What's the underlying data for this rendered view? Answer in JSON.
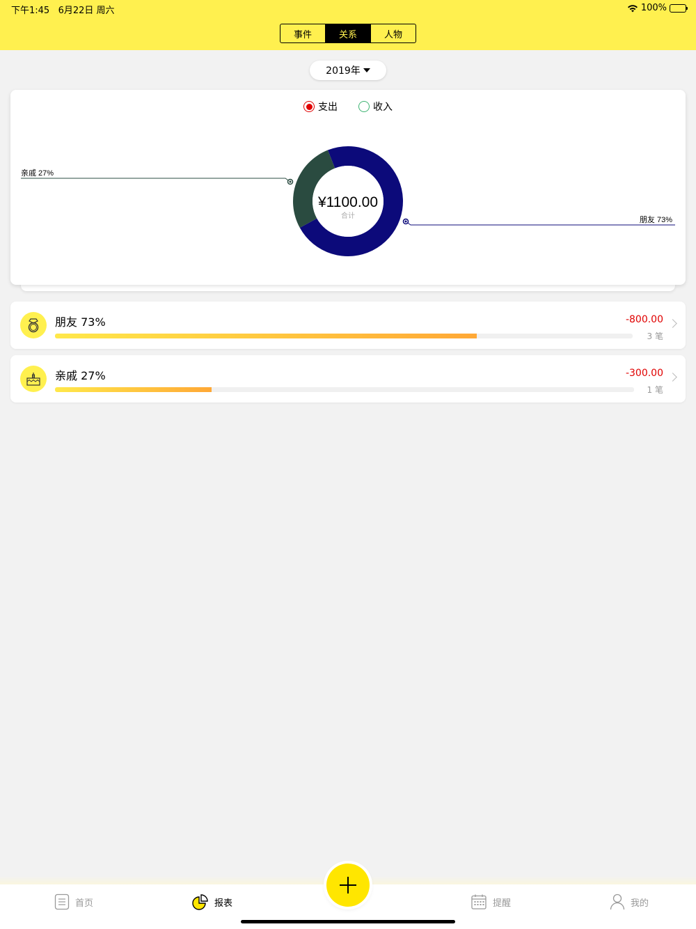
{
  "status": {
    "time": "下午1:45",
    "date": "6月22日 周六",
    "battery": "100%"
  },
  "segment": {
    "tabs": [
      "事件",
      "关系",
      "人物"
    ],
    "active": 1
  },
  "year_picker": {
    "label": "2019年"
  },
  "chart_legend": {
    "expense": "支出",
    "income": "收入"
  },
  "chart_data": {
    "type": "pie",
    "categories": [
      "朋友",
      "亲戚"
    ],
    "values": [
      73,
      27
    ],
    "labels": [
      "朋友 73%",
      "亲戚 27%"
    ],
    "colors": [
      "#0c0a7a",
      "#2a4b40"
    ],
    "center_value": "¥1100.00",
    "center_label": "合计"
  },
  "list": [
    {
      "label": "朋友 73%",
      "amount": "-800.00",
      "count": "3 笔",
      "percent": 73,
      "icon": "ring-icon"
    },
    {
      "label": "亲戚 27%",
      "amount": "-300.00",
      "count": "1 笔",
      "percent": 27,
      "icon": "cake-icon"
    }
  ],
  "tabbar": {
    "home": "首页",
    "report": "报表",
    "remind": "提醒",
    "mine": "我的"
  },
  "colors": {
    "accent": "#fff04f",
    "expense": "#e00000"
  }
}
